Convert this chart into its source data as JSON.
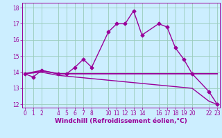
{
  "xlabel": "Windchill (Refroidissement éolien,°C)",
  "bg_color": "#cceeff",
  "line_color": "#990099",
  "grid_color": "#99ccbb",
  "series": [
    {
      "x": [
        0,
        1,
        2,
        4,
        5,
        6,
        7,
        8,
        10,
        11,
        12,
        13,
        14,
        16,
        17,
        18,
        19,
        20,
        22,
        23
      ],
      "y": [
        13.9,
        13.7,
        14.1,
        13.9,
        13.9,
        14.3,
        14.8,
        14.3,
        16.5,
        17.0,
        17.0,
        17.8,
        16.3,
        17.0,
        16.8,
        15.5,
        14.8,
        13.9,
        12.8,
        12.0
      ],
      "marker": "D",
      "markersize": 2.5,
      "linewidth": 1.0
    },
    {
      "x": [
        0,
        2,
        4,
        20,
        22,
        23
      ],
      "y": [
        13.9,
        14.1,
        13.9,
        13.9,
        13.9,
        13.9
      ],
      "marker": null,
      "linewidth": 1.3
    },
    {
      "x": [
        0,
        2,
        4,
        20,
        22,
        23
      ],
      "y": [
        13.9,
        14.0,
        13.8,
        13.0,
        12.2,
        12.0
      ],
      "marker": null,
      "linewidth": 1.0
    }
  ],
  "xlim": [
    -0.3,
    23.3
  ],
  "ylim": [
    11.8,
    18.3
  ],
  "xticks": [
    0,
    1,
    2,
    4,
    5,
    6,
    7,
    8,
    10,
    11,
    12,
    13,
    14,
    16,
    17,
    18,
    19,
    20,
    22,
    23
  ],
  "yticks": [
    12,
    13,
    14,
    15,
    16,
    17,
    18
  ],
  "tick_fontsize": 5.5,
  "label_fontsize": 6.5
}
